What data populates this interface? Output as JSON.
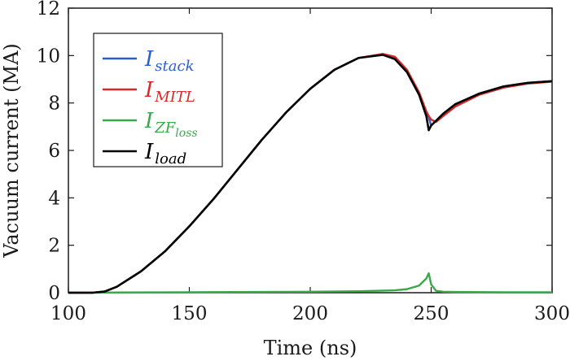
{
  "chart_data": {
    "type": "line",
    "xlabel": "Time (ns)",
    "ylabel": "Vacuum current (MA)",
    "xlim": [
      100,
      300
    ],
    "ylim": [
      0,
      12
    ],
    "xticks": [
      "100",
      "150",
      "200",
      "250",
      "300"
    ],
    "yticks": [
      "0",
      "2",
      "4",
      "6",
      "8",
      "10",
      "12"
    ],
    "grid": false,
    "legend_position": "top-left",
    "series": [
      {
        "name": "I_stack",
        "label_main": "I",
        "label_sub": "stack",
        "color": "#2a5ec8",
        "x": [
          100,
          110,
          115,
          120,
          130,
          140,
          150,
          160,
          170,
          180,
          190,
          200,
          210,
          220,
          230,
          235,
          240,
          245,
          248,
          249,
          250,
          252,
          255,
          260,
          270,
          280,
          290,
          300
        ],
        "y": [
          0,
          0,
          0.05,
          0.25,
          0.9,
          1.75,
          2.8,
          3.95,
          5.2,
          6.45,
          7.6,
          8.6,
          9.4,
          9.9,
          10.05,
          9.9,
          9.35,
          8.4,
          7.6,
          7.4,
          7.05,
          7.25,
          7.55,
          7.95,
          8.4,
          8.7,
          8.85,
          8.92
        ]
      },
      {
        "name": "I_MITL",
        "label_main": "I",
        "label_sub": "MITL",
        "color": "#d62a2a",
        "x": [
          100,
          110,
          115,
          120,
          130,
          140,
          150,
          160,
          170,
          180,
          190,
          200,
          210,
          220,
          230,
          235,
          240,
          245,
          248,
          249,
          250,
          252,
          255,
          260,
          270,
          280,
          290,
          300
        ],
        "y": [
          0,
          0,
          0.05,
          0.25,
          0.9,
          1.75,
          2.8,
          3.95,
          5.2,
          6.45,
          7.6,
          8.6,
          9.4,
          9.9,
          10.07,
          9.95,
          9.4,
          8.45,
          7.65,
          7.45,
          7.3,
          7.2,
          7.45,
          7.85,
          8.35,
          8.65,
          8.82,
          8.9
        ]
      },
      {
        "name": "I_ZFloss",
        "label_main": "I",
        "label_sub": "ZF",
        "label_subsub": "loss",
        "color": "#3aa84a",
        "x": [
          100,
          120,
          150,
          200,
          220,
          235,
          240,
          245,
          248,
          249,
          250,
          252,
          255,
          260,
          280,
          300
        ],
        "y": [
          0,
          0.01,
          0.02,
          0.04,
          0.06,
          0.1,
          0.15,
          0.3,
          0.6,
          0.82,
          0.35,
          0.08,
          0.04,
          0.03,
          0.02,
          0.02
        ]
      },
      {
        "name": "I_load",
        "label_main": "I",
        "label_sub": "load",
        "color": "#000000",
        "x": [
          100,
          110,
          115,
          120,
          130,
          140,
          150,
          160,
          170,
          180,
          190,
          200,
          210,
          220,
          230,
          235,
          240,
          245,
          248,
          249,
          250,
          252,
          255,
          260,
          270,
          280,
          290,
          300
        ],
        "y": [
          0,
          0,
          0.05,
          0.25,
          0.9,
          1.75,
          2.8,
          3.95,
          5.2,
          6.45,
          7.6,
          8.6,
          9.4,
          9.9,
          10.03,
          9.85,
          9.3,
          8.35,
          7.45,
          6.85,
          7.05,
          7.25,
          7.55,
          7.95,
          8.4,
          8.7,
          8.85,
          8.92
        ]
      }
    ]
  }
}
